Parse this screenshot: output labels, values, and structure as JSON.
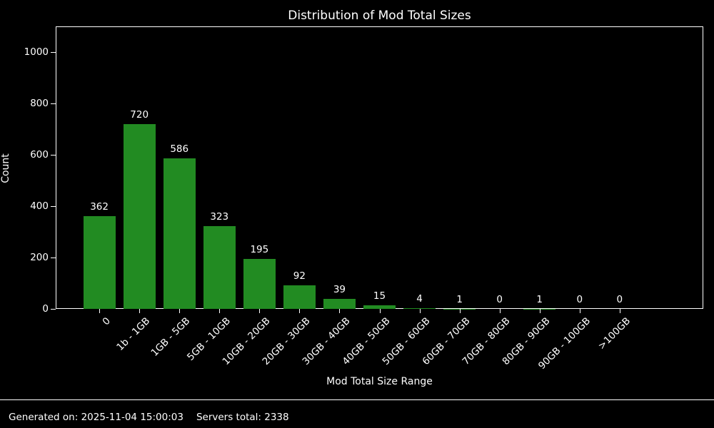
{
  "title": "Distribution of Mod Total Sizes",
  "footer": {
    "generated": "Generated on: 2025-11-04 15:00:03",
    "servers_total": "Servers total: 2338"
  },
  "chart_data": {
    "type": "bar",
    "title": "Distribution of Mod Total Sizes",
    "xlabel": "Mod Total Size Range",
    "ylabel": "Count",
    "categories": [
      "0",
      "1b - 1GB",
      "1GB - 5GB",
      "5GB - 10GB",
      "10GB - 20GB",
      "20GB - 30GB",
      "30GB - 40GB",
      "40GB - 50GB",
      "50GB - 60GB",
      "60GB - 70GB",
      "70GB - 80GB",
      "80GB - 90GB",
      "90GB - 100GB",
      ">100GB"
    ],
    "values": [
      362,
      720,
      586,
      323,
      195,
      92,
      39,
      15,
      4,
      1,
      0,
      1,
      0,
      0
    ],
    "yticks": [
      0,
      200,
      400,
      600,
      800,
      1000
    ],
    "ylim": [
      0,
      1100
    ],
    "bar_color": "#228B22",
    "background_color": "#000000",
    "text_color": "#ffffff",
    "grid": false,
    "legend": null,
    "bar_value_labels_shown": true,
    "x_tick_rotation_deg": 45
  }
}
